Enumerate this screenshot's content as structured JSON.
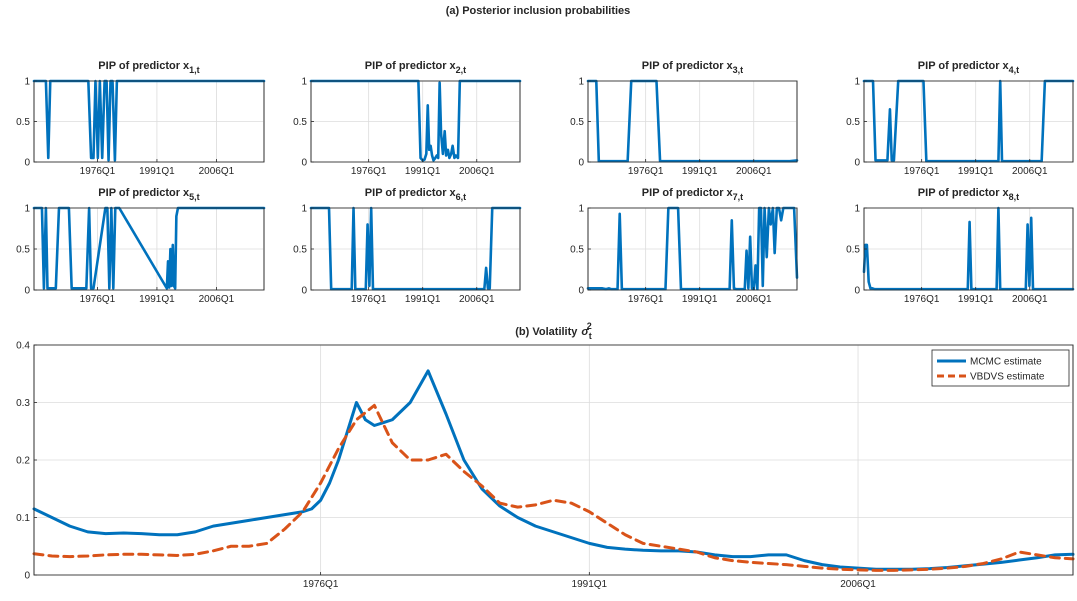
{
  "figure": {
    "title_a": "(a) Posterior inclusion probabilities",
    "title_b": "(b) Volatility"
  },
  "colors": {
    "blue": "#0072BD",
    "orange": "#D95319"
  },
  "chart_data": [
    {
      "type": "line",
      "title": "PIP of predictor x1,t",
      "title_text": "PIP of predictor x",
      "title_sub": "1,t",
      "x_domain": [
        1960,
        2018
      ],
      "xticks": [
        1976,
        1991,
        2006
      ],
      "xtick_labels": [
        "1976Q1",
        "1991Q1",
        "2006Q1"
      ],
      "ylim": [
        0,
        1
      ],
      "yticks": [
        0,
        0.5,
        1
      ],
      "ytick_labels": [
        "0",
        "0.5",
        "1"
      ],
      "grid": true,
      "series": [
        {
          "color": "#0072BD",
          "x": [
            1960,
            1962.5,
            1963,
            1963.6,
            1964.1,
            1964.6,
            1973.7,
            1974.4,
            1975,
            1975.5,
            1976.1,
            1976.6,
            1977.2,
            1977.8,
            1978.3,
            1978.8,
            1979.3,
            1979.8,
            1980.4,
            1980.9,
            2018
          ],
          "y": [
            1,
            1,
            1,
            0.05,
            1,
            1,
            1,
            0.05,
            0.05,
            1,
            0.05,
            1,
            0.05,
            1,
            1,
            0.02,
            1,
            1,
            0.02,
            1,
            1
          ]
        }
      ]
    },
    {
      "type": "line",
      "title": "PIP of predictor x2,t",
      "title_text": "PIP of predictor x",
      "title_sub": "2,t",
      "x_domain": [
        1960,
        2018
      ],
      "xticks": [
        1976,
        1991,
        2006
      ],
      "xtick_labels": [
        "1976Q1",
        "1991Q1",
        "2006Q1"
      ],
      "ylim": [
        0,
        1
      ],
      "yticks": [
        0,
        0.5,
        1
      ],
      "ytick_labels": [
        "0",
        "0.5",
        "1"
      ],
      "grid": true,
      "series": [
        {
          "color": "#0072BD",
          "x": [
            1960,
            1989.8,
            1990.4,
            1991,
            1991.5,
            1992,
            1992.4,
            1992.8,
            1993.2,
            1993.6,
            1994,
            1994.5,
            1994.9,
            1995.3,
            1995.7,
            1996.1,
            1996.6,
            1997.1,
            1997.5,
            1998,
            1998.4,
            1998.9,
            1999.3,
            1999.8,
            2000.2,
            2000.8,
            2001.3,
            2018
          ],
          "y": [
            1,
            1,
            0.05,
            0.02,
            0.03,
            0.1,
            0.7,
            0.15,
            0.2,
            0.08,
            0.02,
            0.05,
            0.08,
            0.05,
            0.98,
            0.35,
            0.1,
            0.38,
            0.08,
            0.15,
            0.05,
            0.1,
            0.2,
            0.05,
            0.08,
            0.05,
            1,
            1
          ]
        }
      ]
    },
    {
      "type": "line",
      "title": "PIP of predictor x3,t",
      "title_text": "PIP of predictor x",
      "title_sub": "3,t",
      "x_domain": [
        1960,
        2018
      ],
      "xticks": [
        1976,
        1991,
        2006
      ],
      "xtick_labels": [
        "1976Q1",
        "1991Q1",
        "2006Q1"
      ],
      "ylim": [
        0,
        1
      ],
      "yticks": [
        0,
        0.5,
        1
      ],
      "ytick_labels": [
        "0",
        "0.5",
        "1"
      ],
      "grid": true,
      "series": [
        {
          "color": "#0072BD",
          "x": [
            1960,
            1962.3,
            1963,
            1971,
            1972,
            1979,
            1980,
            2016,
            2018
          ],
          "y": [
            1,
            1,
            0.01,
            0.01,
            1,
            1,
            0.01,
            0.01,
            0.02
          ]
        }
      ]
    },
    {
      "type": "line",
      "title": "PIP of predictor x4,t",
      "title_text": "PIP of predictor x",
      "title_sub": "4,t",
      "x_domain": [
        1960,
        2018
      ],
      "xticks": [
        1976,
        1991,
        2006
      ],
      "xtick_labels": [
        "1976Q1",
        "1991Q1",
        "2006Q1"
      ],
      "ylim": [
        0,
        1
      ],
      "yticks": [
        0,
        0.5,
        1
      ],
      "ytick_labels": [
        "0",
        "0.5",
        "1"
      ],
      "grid": true,
      "series": [
        {
          "color": "#0072BD",
          "x": [
            1960,
            1962.5,
            1963.2,
            1966.5,
            1967.2,
            1967.7,
            1968.3,
            1969.5,
            1970.3,
            1976.5,
            1977.3,
            1997.3,
            1997.8,
            1998.3,
            2009.3,
            2010.2,
            2018
          ],
          "y": [
            1,
            1,
            0.02,
            0.02,
            0.65,
            0.02,
            0.02,
            1,
            1,
            1,
            0.01,
            0.01,
            1,
            0.01,
            0.01,
            1,
            1
          ]
        }
      ]
    },
    {
      "type": "line",
      "title": "PIP of predictor x5,t",
      "title_text": "PIP of predictor x",
      "title_sub": "5,t",
      "x_domain": [
        1960,
        2018
      ],
      "xticks": [
        1976,
        1991,
        2006
      ],
      "xtick_labels": [
        "1976Q1",
        "1991Q1",
        "2006Q1"
      ],
      "ylim": [
        0,
        1
      ],
      "yticks": [
        0,
        0.5,
        1
      ],
      "ytick_labels": [
        "0",
        "0.5",
        "1"
      ],
      "grid": true,
      "series": [
        {
          "color": "#0072BD",
          "x": [
            1960,
            1962,
            1962.5,
            1963,
            1963.4,
            1965.5,
            1966.3,
            1968.8,
            1969.5,
            1973.2,
            1973.9,
            1974.4,
            1975,
            1978,
            1978.5,
            1979,
            1979.5,
            1980,
            1980.5,
            1981,
            1981.5,
            1993.5,
            1993.8,
            1994.1,
            1994.4,
            1994.7,
            1995,
            1995.3,
            1995.6,
            1995.9,
            1996.3,
            2018
          ],
          "y": [
            1,
            1,
            0.02,
            1,
            0.02,
            0.02,
            1,
            1,
            0.02,
            0.02,
            1,
            0.02,
            0.02,
            1,
            1,
            0.02,
            1,
            0.02,
            1,
            1,
            1,
            0.02,
            0.35,
            0.03,
            0.5,
            0.05,
            0.55,
            0.05,
            0.02,
            0.9,
            1,
            1
          ]
        }
      ]
    },
    {
      "type": "line",
      "title": "PIP of predictor x6,t",
      "title_text": "PIP of predictor x",
      "title_sub": "6,t",
      "x_domain": [
        1960,
        2018
      ],
      "xticks": [
        1976,
        1991,
        2006
      ],
      "xtick_labels": [
        "1976Q1",
        "1991Q1",
        "2006Q1"
      ],
      "ylim": [
        0,
        1
      ],
      "yticks": [
        0,
        0.5,
        1
      ],
      "ytick_labels": [
        "0",
        "0.5",
        "1"
      ],
      "grid": true,
      "series": [
        {
          "color": "#0072BD",
          "x": [
            1960,
            1965,
            1965.6,
            1971.3,
            1971.8,
            1972.3,
            1975.2,
            1975.7,
            1976.2,
            1976.7,
            1977.2,
            1977.7,
            2008.1,
            2008.6,
            2009.1,
            2009.6,
            2010.3,
            2018
          ],
          "y": [
            1,
            1,
            0.01,
            0.01,
            1,
            0.01,
            0.01,
            0.8,
            0.05,
            1,
            0.01,
            0.01,
            0.01,
            0.27,
            0.02,
            0.02,
            1,
            1
          ]
        }
      ]
    },
    {
      "type": "line",
      "title": "PIP of predictor x7,t",
      "title_text": "PIP of predictor x",
      "title_sub": "7,t",
      "x_domain": [
        1960,
        2018
      ],
      "xticks": [
        1976,
        1991,
        2006
      ],
      "xtick_labels": [
        "1976Q1",
        "1991Q1",
        "2006Q1"
      ],
      "ylim": [
        0,
        1
      ],
      "yticks": [
        0,
        0.5,
        1
      ],
      "ytick_labels": [
        "0",
        "0.5",
        "1"
      ],
      "grid": true,
      "series": [
        {
          "color": "#0072BD",
          "x": [
            1960,
            1964,
            1965,
            1965.8,
            1966.5,
            1968.2,
            1968.8,
            1969.4,
            1981.5,
            1982.3,
            1985,
            1985.8,
            1999.3,
            1999.9,
            2000.5,
            2001.2,
            2003.5,
            2004,
            2004.5,
            2005,
            2005.5,
            2006,
            2006.5,
            2007,
            2007.5,
            2008,
            2008.5,
            2009,
            2009.6,
            2010.2,
            2010.7,
            2011.3,
            2011.8,
            2012.4,
            2013,
            2013.6,
            2014.2,
            2015,
            2016,
            2017.2,
            2018
          ],
          "y": [
            0.02,
            0.02,
            0.01,
            0.02,
            0.01,
            0.01,
            0.93,
            0.01,
            0.01,
            1,
            1,
            0.01,
            0.01,
            0.85,
            0.02,
            0.01,
            0.01,
            0.48,
            0.02,
            0.65,
            0.02,
            0.01,
            0.3,
            0.01,
            1,
            1,
            0.05,
            1,
            0.4,
            1,
            0.8,
            1,
            0.45,
            1,
            1,
            0.85,
            1,
            1,
            1,
            1,
            0.15
          ]
        }
      ]
    },
    {
      "type": "line",
      "title": "PIP of predictor x8,t",
      "title_text": "PIP of predictor x",
      "title_sub": "8,t",
      "x_domain": [
        1960,
        2018
      ],
      "xticks": [
        1976,
        1991,
        2006
      ],
      "xtick_labels": [
        "1976Q1",
        "1991Q1",
        "2006Q1"
      ],
      "ylim": [
        0,
        1
      ],
      "yticks": [
        0,
        0.5,
        1
      ],
      "ytick_labels": [
        "0",
        "0.5",
        "1"
      ],
      "grid": true,
      "series": [
        {
          "color": "#0072BD",
          "x": [
            1960,
            1960.4,
            1960.8,
            1961.3,
            1961.8,
            1962.3,
            1963,
            1988.8,
            1989.3,
            1989.8,
            1996.8,
            1997.3,
            1997.8,
            2004.9,
            2005.4,
            2005.9,
            2006.4,
            2006.9,
            2007.4,
            2018
          ],
          "y": [
            0.22,
            0.55,
            0.55,
            0.1,
            0.02,
            0.02,
            0.01,
            0.01,
            0.83,
            0.01,
            0.01,
            1,
            0.01,
            0.01,
            0.8,
            0.05,
            0.88,
            0.01,
            0.01,
            0.01
          ]
        }
      ]
    },
    {
      "type": "line",
      "title": "(b) Volatility σt2",
      "title_text": "(b) Volatility",
      "title_symbol": "σ",
      "title_sub": "t",
      "title_sup": "2",
      "x_domain": [
        1960,
        2018
      ],
      "xticks": [
        1976,
        1991,
        2006
      ],
      "xtick_labels": [
        "1976Q1",
        "1991Q1",
        "2006Q1"
      ],
      "ylim": [
        0,
        0.4
      ],
      "yticks": [
        0,
        0.1,
        0.2,
        0.3,
        0.4
      ],
      "ytick_labels": [
        "0",
        "0.1",
        "0.2",
        "0.3",
        "0.4"
      ],
      "grid": true,
      "legend_position": "top-right",
      "series": [
        {
          "name": "MCMC estimate",
          "color": "#0072BD",
          "dash": "solid",
          "x": [
            1960,
            1961,
            1962,
            1963,
            1964,
            1965,
            1966,
            1967,
            1968,
            1969,
            1970,
            1971,
            1972,
            1973,
            1974,
            1975,
            1975.5,
            1976,
            1976.5,
            1977,
            1977.5,
            1978,
            1978.5,
            1979,
            1980,
            1981,
            1982,
            1983,
            1984,
            1985,
            1986,
            1987,
            1988,
            1989,
            1990,
            1991,
            1992,
            1993,
            1994,
            1995,
            1996,
            1997,
            1998,
            1999,
            2000,
            2001,
            2002,
            2003,
            2004,
            2005,
            2006,
            2007,
            2008,
            2009,
            2010,
            2011,
            2012,
            2013,
            2014,
            2015,
            2016,
            2017,
            2018
          ],
          "y": [
            0.115,
            0.1,
            0.085,
            0.075,
            0.072,
            0.073,
            0.072,
            0.07,
            0.07,
            0.075,
            0.085,
            0.09,
            0.095,
            0.1,
            0.105,
            0.11,
            0.115,
            0.13,
            0.16,
            0.2,
            0.25,
            0.3,
            0.27,
            0.26,
            0.27,
            0.3,
            0.355,
            0.28,
            0.2,
            0.15,
            0.12,
            0.1,
            0.085,
            0.075,
            0.065,
            0.055,
            0.048,
            0.045,
            0.043,
            0.042,
            0.042,
            0.04,
            0.035,
            0.032,
            0.032,
            0.035,
            0.035,
            0.025,
            0.018,
            0.014,
            0.012,
            0.01,
            0.01,
            0.01,
            0.011,
            0.013,
            0.016,
            0.019,
            0.022,
            0.026,
            0.03,
            0.035,
            0.036
          ]
        },
        {
          "name": "VBDVS estimate",
          "color": "#D95319",
          "dash": "dashed",
          "x": [
            1960,
            1961,
            1962,
            1963,
            1964,
            1965,
            1966,
            1967,
            1968,
            1969,
            1970,
            1971,
            1972,
            1973,
            1974,
            1975,
            1976,
            1977,
            1978,
            1979,
            1980,
            1981,
            1982,
            1983,
            1984,
            1985,
            1986,
            1987,
            1988,
            1989,
            1990,
            1991,
            1992,
            1993,
            1994,
            1995,
            1996,
            1997,
            1998,
            1999,
            2000,
            2001,
            2002,
            2003,
            2004,
            2005,
            2006,
            2007,
            2008,
            2009,
            2010,
            2011,
            2012,
            2013,
            2014,
            2015,
            2016,
            2017,
            2018
          ],
          "y": [
            0.037,
            0.033,
            0.032,
            0.033,
            0.035,
            0.036,
            0.036,
            0.035,
            0.034,
            0.036,
            0.042,
            0.05,
            0.05,
            0.055,
            0.08,
            0.11,
            0.16,
            0.22,
            0.27,
            0.295,
            0.23,
            0.2,
            0.2,
            0.21,
            0.18,
            0.155,
            0.125,
            0.118,
            0.122,
            0.13,
            0.125,
            0.11,
            0.09,
            0.07,
            0.055,
            0.05,
            0.045,
            0.04,
            0.03,
            0.025,
            0.022,
            0.02,
            0.018,
            0.015,
            0.012,
            0.01,
            0.009,
            0.008,
            0.008,
            0.009,
            0.01,
            0.012,
            0.015,
            0.02,
            0.028,
            0.04,
            0.035,
            0.03,
            0.028
          ]
        }
      ]
    }
  ]
}
